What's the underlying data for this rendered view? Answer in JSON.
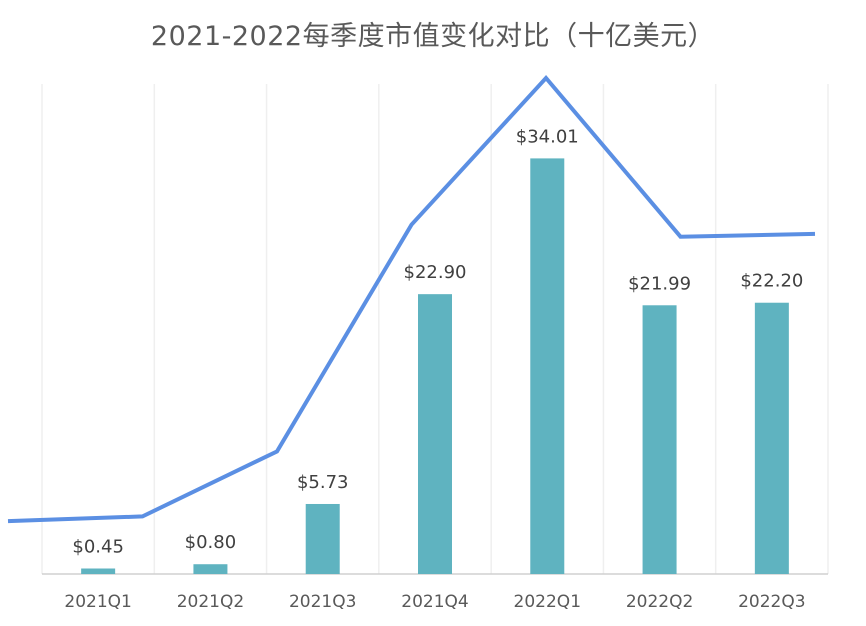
{
  "chart_data": {
    "type": "bar",
    "title": "2021-2022每季度市值变化对比（十亿美元）",
    "categories": [
      "2021Q1",
      "2021Q2",
      "2021Q3",
      "2021Q4",
      "2022Q1",
      "2022Q2",
      "2022Q3"
    ],
    "series": [
      {
        "type": "bar",
        "values": [
          0.45,
          0.8,
          5.73,
          22.9,
          34.01,
          21.99,
          22.2
        ],
        "data_labels": [
          "$0.45",
          "$0.80",
          "$5.73",
          "$22.90",
          "$34.01",
          "$21.99",
          "$22.20"
        ],
        "color": "#5FB3C0"
      },
      {
        "type": "line",
        "values": [
          0.45,
          0.8,
          5.73,
          22.9,
          34.01,
          21.99,
          22.2
        ],
        "color": "#5B8FE3"
      }
    ],
    "grid": true,
    "legend": "none"
  }
}
